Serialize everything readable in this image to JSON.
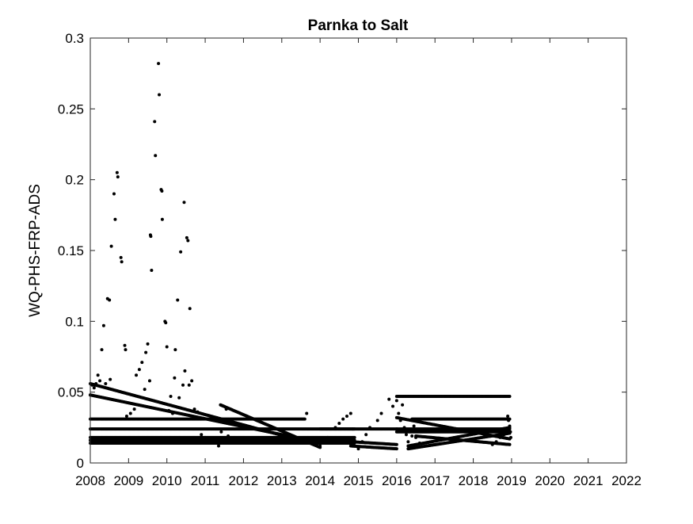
{
  "chart_data": {
    "type": "scatter",
    "title": "Parnka to Salt",
    "xlabel": "",
    "ylabel": "WQ-PHS-FRP-ADS",
    "xlim": [
      2008,
      2022
    ],
    "ylim": [
      0,
      0.3
    ],
    "xticks": [
      2008,
      2009,
      2010,
      2011,
      2012,
      2013,
      2014,
      2015,
      2016,
      2017,
      2018,
      2019,
      2020,
      2021,
      2022
    ],
    "yticks": [
      0,
      0.05,
      0.1,
      0.15,
      0.2,
      0.25,
      0.3
    ],
    "ytick_labels": [
      "0",
      "0.05",
      "0.1",
      "0.15",
      "0.2",
      "0.25",
      "0.3"
    ],
    "grid": false,
    "marker_color": "#000000",
    "points": [
      [
        2008.0,
        0.048
      ],
      [
        2008.05,
        0.055
      ],
      [
        2008.1,
        0.053
      ],
      [
        2008.15,
        0.056
      ],
      [
        2008.2,
        0.062
      ],
      [
        2008.25,
        0.058
      ],
      [
        2008.3,
        0.08
      ],
      [
        2008.35,
        0.097
      ],
      [
        2008.4,
        0.056
      ],
      [
        2008.45,
        0.116
      ],
      [
        2008.5,
        0.115
      ],
      [
        2008.52,
        0.059
      ],
      [
        2008.55,
        0.153
      ],
      [
        2008.62,
        0.19
      ],
      [
        2008.65,
        0.172
      ],
      [
        2008.7,
        0.205
      ],
      [
        2008.72,
        0.202
      ],
      [
        2008.8,
        0.145
      ],
      [
        2008.82,
        0.142
      ],
      [
        2008.9,
        0.083
      ],
      [
        2008.92,
        0.08
      ],
      [
        2008.95,
        0.033
      ],
      [
        2009.05,
        0.035
      ],
      [
        2009.15,
        0.038
      ],
      [
        2009.2,
        0.062
      ],
      [
        2009.28,
        0.066
      ],
      [
        2009.35,
        0.071
      ],
      [
        2009.42,
        0.052
      ],
      [
        2009.45,
        0.078
      ],
      [
        2009.5,
        0.084
      ],
      [
        2009.55,
        0.058
      ],
      [
        2009.57,
        0.161
      ],
      [
        2009.58,
        0.16
      ],
      [
        2009.6,
        0.136
      ],
      [
        2009.68,
        0.241
      ],
      [
        2009.7,
        0.217
      ],
      [
        2009.78,
        0.282
      ],
      [
        2009.8,
        0.26
      ],
      [
        2009.85,
        0.193
      ],
      [
        2009.87,
        0.192
      ],
      [
        2009.88,
        0.172
      ],
      [
        2009.95,
        0.1
      ],
      [
        2009.97,
        0.099
      ],
      [
        2010.0,
        0.082
      ],
      [
        2010.05,
        0.037
      ],
      [
        2010.1,
        0.047
      ],
      [
        2010.15,
        0.035
      ],
      [
        2010.2,
        0.06
      ],
      [
        2010.22,
        0.08
      ],
      [
        2010.28,
        0.115
      ],
      [
        2010.32,
        0.046
      ],
      [
        2010.36,
        0.149
      ],
      [
        2010.42,
        0.055
      ],
      [
        2010.45,
        0.184
      ],
      [
        2010.47,
        0.065
      ],
      [
        2010.52,
        0.159
      ],
      [
        2010.55,
        0.157
      ],
      [
        2010.58,
        0.055
      ],
      [
        2010.6,
        0.109
      ],
      [
        2010.65,
        0.058
      ],
      [
        2010.72,
        0.038
      ],
      [
        2010.8,
        0.036
      ],
      [
        2010.9,
        0.02
      ],
      [
        2011.0,
        0.018
      ],
      [
        2011.1,
        0.016
      ],
      [
        2011.2,
        0.015
      ],
      [
        2011.3,
        0.014
      ],
      [
        2011.35,
        0.012
      ],
      [
        2011.42,
        0.022
      ],
      [
        2011.55,
        0.038
      ],
      [
        2011.6,
        0.019
      ],
      [
        2013.65,
        0.035
      ],
      [
        2014.0,
        0.012
      ],
      [
        2014.2,
        0.018
      ],
      [
        2014.4,
        0.025
      ],
      [
        2014.5,
        0.028
      ],
      [
        2014.6,
        0.031
      ],
      [
        2014.7,
        0.033
      ],
      [
        2014.8,
        0.035
      ],
      [
        2014.85,
        0.024
      ],
      [
        2015.0,
        0.01
      ],
      [
        2015.1,
        0.015
      ],
      [
        2015.2,
        0.02
      ],
      [
        2015.3,
        0.025
      ],
      [
        2015.5,
        0.03
      ],
      [
        2015.6,
        0.035
      ],
      [
        2015.8,
        0.045
      ],
      [
        2015.9,
        0.04
      ],
      [
        2016.0,
        0.044
      ],
      [
        2016.05,
        0.035
      ],
      [
        2016.1,
        0.03
      ],
      [
        2016.15,
        0.041
      ],
      [
        2016.2,
        0.025
      ],
      [
        2016.25,
        0.02
      ],
      [
        2016.3,
        0.015
      ],
      [
        2016.35,
        0.012
      ],
      [
        2016.4,
        0.019
      ],
      [
        2016.45,
        0.026
      ],
      [
        2016.5,
        0.018
      ],
      [
        2016.6,
        0.014
      ],
      [
        2018.5,
        0.013
      ],
      [
        2018.6,
        0.015
      ],
      [
        2018.7,
        0.018
      ],
      [
        2018.8,
        0.02
      ],
      [
        2018.9,
        0.033
      ],
      [
        2018.92,
        0.03
      ],
      [
        2018.95,
        0.026
      ],
      [
        2018.97,
        0.022
      ],
      [
        2018.98,
        0.018
      ]
    ],
    "dense_series": [
      {
        "x_start": 2008.0,
        "x_end": 2013.9,
        "y_start": 0.056,
        "y_end": 0.013
      },
      {
        "x_start": 2008.0,
        "x_end": 2013.9,
        "y_start": 0.048,
        "y_end": 0.015
      },
      {
        "x_start": 2011.4,
        "x_end": 2014.0,
        "y_start": 0.041,
        "y_end": 0.011
      },
      {
        "x_start": 2008.0,
        "x_end": 2013.6,
        "y_start": 0.031,
        "y_end": 0.031
      },
      {
        "x_start": 2008.0,
        "x_end": 2014.9,
        "y_start": 0.024,
        "y_end": 0.024
      },
      {
        "x_start": 2008.0,
        "x_end": 2014.9,
        "y_start": 0.018,
        "y_end": 0.018
      },
      {
        "x_start": 2008.0,
        "x_end": 2014.9,
        "y_start": 0.016,
        "y_end": 0.016
      },
      {
        "x_start": 2008.0,
        "x_end": 2014.9,
        "y_start": 0.014,
        "y_end": 0.014
      },
      {
        "x_start": 2014.0,
        "x_end": 2016.0,
        "y_start": 0.024,
        "y_end": 0.024
      },
      {
        "x_start": 2014.8,
        "x_end": 2016.0,
        "y_start": 0.012,
        "y_end": 0.01
      },
      {
        "x_start": 2014.8,
        "x_end": 2016.0,
        "y_start": 0.015,
        "y_end": 0.013
      },
      {
        "x_start": 2016.0,
        "x_end": 2018.95,
        "y_start": 0.047,
        "y_end": 0.047
      },
      {
        "x_start": 2016.0,
        "x_end": 2018.95,
        "y_start": 0.024,
        "y_end": 0.024
      },
      {
        "x_start": 2016.0,
        "x_end": 2018.95,
        "y_start": 0.022,
        "y_end": 0.022
      },
      {
        "x_start": 2016.4,
        "x_end": 2018.95,
        "y_start": 0.031,
        "y_end": 0.031
      },
      {
        "x_start": 2016.0,
        "x_end": 2018.95,
        "y_start": 0.032,
        "y_end": 0.017
      },
      {
        "x_start": 2016.3,
        "x_end": 2018.95,
        "y_start": 0.01,
        "y_end": 0.021
      },
      {
        "x_start": 2016.3,
        "x_end": 2018.95,
        "y_start": 0.012,
        "y_end": 0.025
      },
      {
        "x_start": 2016.5,
        "x_end": 2018.95,
        "y_start": 0.019,
        "y_end": 0.013
      }
    ]
  }
}
